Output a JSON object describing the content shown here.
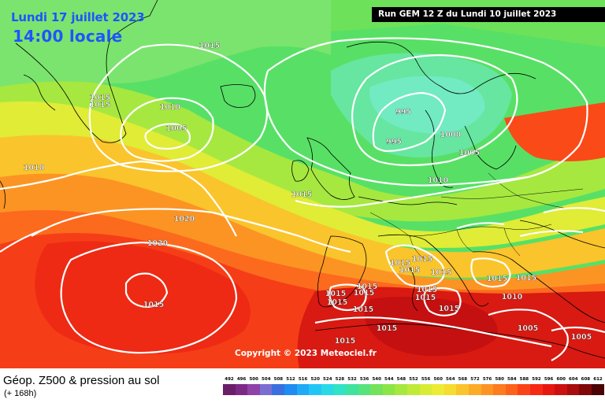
{
  "header": {
    "date": "Lundi 17 juillet 2023",
    "local_time": "14:00 locale",
    "run": "Run GEM 12 Z du Lundi 10 juillet 2023"
  },
  "copyright": "Copyright © 2023 Meteociel.fr",
  "legend": {
    "title": "Géop. Z500 & pression au sol",
    "forecast_hours": "(+ 168h)",
    "scale_values": [
      "492",
      "496",
      "500",
      "504",
      "508",
      "512",
      "516",
      "520",
      "524",
      "528",
      "532",
      "536",
      "540",
      "544",
      "548",
      "552",
      "556",
      "560",
      "564",
      "568",
      "572",
      "576",
      "580",
      "584",
      "588",
      "592",
      "596",
      "600",
      "604",
      "608",
      "612"
    ],
    "scale_colors": [
      "#6a1f6b",
      "#7d2a86",
      "#8f43a9",
      "#7a6fd1",
      "#3a6fe0",
      "#1e8cf0",
      "#20aaf5",
      "#22c6f6",
      "#28d9e8",
      "#30e2c6",
      "#40e2a0",
      "#56e37c",
      "#72e35a",
      "#8ce548",
      "#a6e840",
      "#c0ea3a",
      "#d8ec36",
      "#ecec34",
      "#f6dc30",
      "#fac42c",
      "#fbac28",
      "#fc9424",
      "#fc7c20",
      "#fc621c",
      "#fa4418",
      "#f62a14",
      "#e61812",
      "#cc1010",
      "#a80c0c",
      "#800808",
      "#4a0404"
    ]
  },
  "pressure_labels": [
    "1015",
    "1015",
    "1015",
    "1010",
    "1005",
    "1010",
    "995",
    "995",
    "1000",
    "1005",
    "1010",
    "1015",
    "1020",
    "1020",
    "1015",
    "1015",
    "1015",
    "1015",
    "1015",
    "1015",
    "1015",
    "1015",
    "1015",
    "1015",
    "1015",
    "1015",
    "1015",
    "1015",
    "1015",
    "1015",
    "1015",
    "1010",
    "1005",
    "1005"
  ],
  "colors": {
    "banner_bg": "#000000",
    "title_text": "#1e55ff",
    "isobar": "#ffffff",
    "coastline": "#000000"
  }
}
